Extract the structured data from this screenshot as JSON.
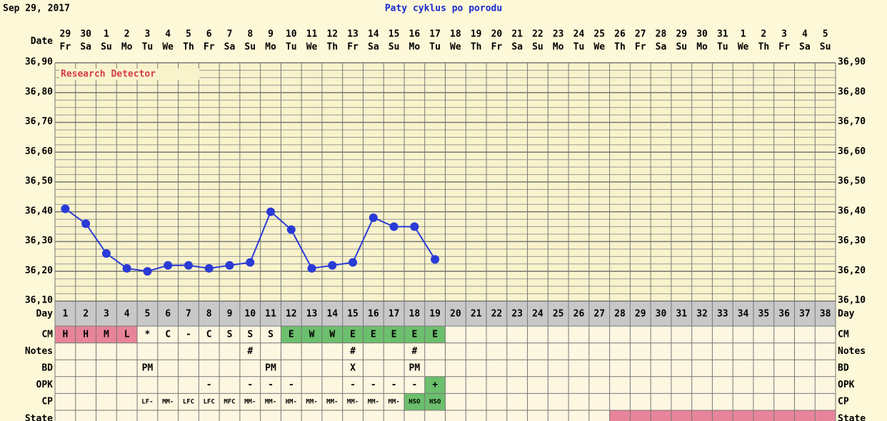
{
  "header": {
    "date": "Sep 29, 2017"
  },
  "chart_data": {
    "type": "line",
    "title": "Paty cyklus po porodu",
    "annotation": "Research Detector",
    "date_label": "Date",
    "categories": [
      "29",
      "30",
      "1",
      "2",
      "3",
      "4",
      "5",
      "6",
      "7",
      "8",
      "9",
      "10",
      "11",
      "12",
      "13",
      "14",
      "15",
      "16",
      "17",
      "18",
      "19",
      "20",
      "21",
      "22",
      "23",
      "24",
      "25",
      "26",
      "27",
      "28",
      "29",
      "30",
      "31",
      "1",
      "2",
      "3",
      "4",
      "5"
    ],
    "weekdays": [
      "Fr",
      "Sa",
      "Su",
      "Mo",
      "Tu",
      "We",
      "Th",
      "Fr",
      "Sa",
      "Su",
      "Mo",
      "Tu",
      "We",
      "Th",
      "Fr",
      "Sa",
      "Su",
      "Mo",
      "Tu",
      "We",
      "Th",
      "Fr",
      "Sa",
      "Su",
      "Mo",
      "Tu",
      "We",
      "Th",
      "Fr",
      "Sa",
      "Su",
      "Mo",
      "Tu",
      "We",
      "Th",
      "Fr",
      "Sa",
      "Su"
    ],
    "series": [
      {
        "color": "#2a3bd6",
        "values": [
          36.41,
          36.36,
          36.26,
          36.21,
          36.2,
          36.22,
          36.22,
          36.21,
          36.22,
          36.23,
          36.4,
          36.34,
          36.21,
          36.22,
          36.23,
          36.38,
          36.35,
          36.35,
          36.24,
          null,
          null,
          null,
          null,
          null,
          null,
          null,
          null,
          null,
          null,
          null,
          null,
          null,
          null,
          null,
          null,
          null,
          null,
          null
        ]
      }
    ],
    "ylim": [
      36.1,
      36.9
    ],
    "yticks": [
      {
        "value": 36.1,
        "label": "36,10"
      },
      {
        "value": 36.2,
        "label": "36,20"
      },
      {
        "value": 36.3,
        "label": "36,30"
      },
      {
        "value": 36.4,
        "label": "36,40"
      },
      {
        "value": 36.5,
        "label": "36,50"
      },
      {
        "value": 36.6,
        "label": "36,60"
      },
      {
        "value": 36.7,
        "label": "36,70"
      },
      {
        "value": 36.8,
        "label": "36,80"
      },
      {
        "value": 36.9,
        "label": "36,90"
      }
    ],
    "minor_yticks": [
      36.125,
      36.15,
      36.175,
      36.225,
      36.25,
      36.275,
      36.325,
      36.35,
      36.375,
      36.425,
      36.45,
      36.475,
      36.525,
      36.55,
      36.575,
      36.625,
      36.65,
      36.675,
      36.725,
      36.75,
      36.775,
      36.825,
      36.85,
      36.875
    ],
    "grid": true
  },
  "table": {
    "day_label": "Day",
    "days": [
      1,
      2,
      3,
      4,
      5,
      6,
      7,
      8,
      9,
      10,
      11,
      12,
      13,
      14,
      15,
      16,
      17,
      18,
      19,
      20,
      21,
      22,
      23,
      24,
      25,
      26,
      27,
      28,
      29,
      30,
      31,
      32,
      33,
      34,
      35,
      36,
      37,
      38
    ],
    "rows": [
      {
        "label": "CM",
        "cells": [
          "H",
          "H",
          "M",
          "L",
          "*",
          "C",
          "-",
          "C",
          "S",
          "S",
          "S",
          "E",
          "W",
          "W",
          "E",
          "E",
          "E",
          "E",
          "E",
          null,
          null,
          null,
          null,
          null,
          null,
          null,
          null,
          null,
          null,
          null,
          null,
          null,
          null,
          null,
          null,
          null,
          null,
          null
        ],
        "highlights": [
          {
            "from": 1,
            "to": 4,
            "color": "#e8849a"
          },
          {
            "from": 12,
            "to": 19,
            "color": "#6cbf6c"
          }
        ]
      },
      {
        "label": "Notes",
        "cells": [
          null,
          null,
          null,
          null,
          null,
          null,
          null,
          null,
          null,
          "#",
          null,
          null,
          null,
          null,
          "#",
          null,
          null,
          "#",
          null,
          null,
          null,
          null,
          null,
          null,
          null,
          null,
          null,
          null,
          null,
          null,
          null,
          null,
          null,
          null,
          null,
          null,
          null,
          null
        ]
      },
      {
        "label": "BD",
        "cells": [
          null,
          null,
          null,
          null,
          "PM",
          null,
          null,
          null,
          null,
          null,
          "PM",
          null,
          null,
          null,
          "X",
          null,
          null,
          "PM",
          null,
          null,
          null,
          null,
          null,
          null,
          null,
          null,
          null,
          null,
          null,
          null,
          null,
          null,
          null,
          null,
          null,
          null,
          null,
          null
        ]
      },
      {
        "label": "OPK",
        "cells": [
          null,
          null,
          null,
          null,
          null,
          null,
          null,
          "-",
          null,
          "-",
          "-",
          "-",
          null,
          null,
          "-",
          "-",
          "-",
          "-",
          "+",
          null,
          null,
          null,
          null,
          null,
          null,
          null,
          null,
          null,
          null,
          null,
          null,
          null,
          null,
          null,
          null,
          null,
          null,
          null
        ],
        "highlights": [
          {
            "from": 19,
            "to": 19,
            "color": "#6cbf6c"
          }
        ]
      },
      {
        "label": "CP",
        "cells": [
          null,
          null,
          null,
          null,
          "LF-",
          "MM-",
          "LFC",
          "LFC",
          "MFC",
          "MM-",
          "MM-",
          "HM-",
          "MM-",
          "MM-",
          "MM-",
          "MM-",
          "MM-",
          "HSO",
          "HSO",
          null,
          null,
          null,
          null,
          null,
          null,
          null,
          null,
          null,
          null,
          null,
          null,
          null,
          null,
          null,
          null,
          null,
          null,
          null
        ],
        "highlights": [
          {
            "from": 18,
            "to": 19,
            "color": "#6cbf6c"
          }
        ]
      },
      {
        "label": "State",
        "cells": [
          null,
          null,
          null,
          null,
          null,
          null,
          null,
          null,
          null,
          null,
          null,
          null,
          null,
          null,
          null,
          null,
          null,
          null,
          null,
          null,
          null,
          null,
          null,
          null,
          null,
          null,
          null,
          null,
          null,
          null,
          null,
          null,
          null,
          null,
          null,
          null,
          null,
          null
        ],
        "highlights": [
          {
            "from": 28,
            "to": 38,
            "color": "#e8849a"
          }
        ]
      }
    ]
  }
}
